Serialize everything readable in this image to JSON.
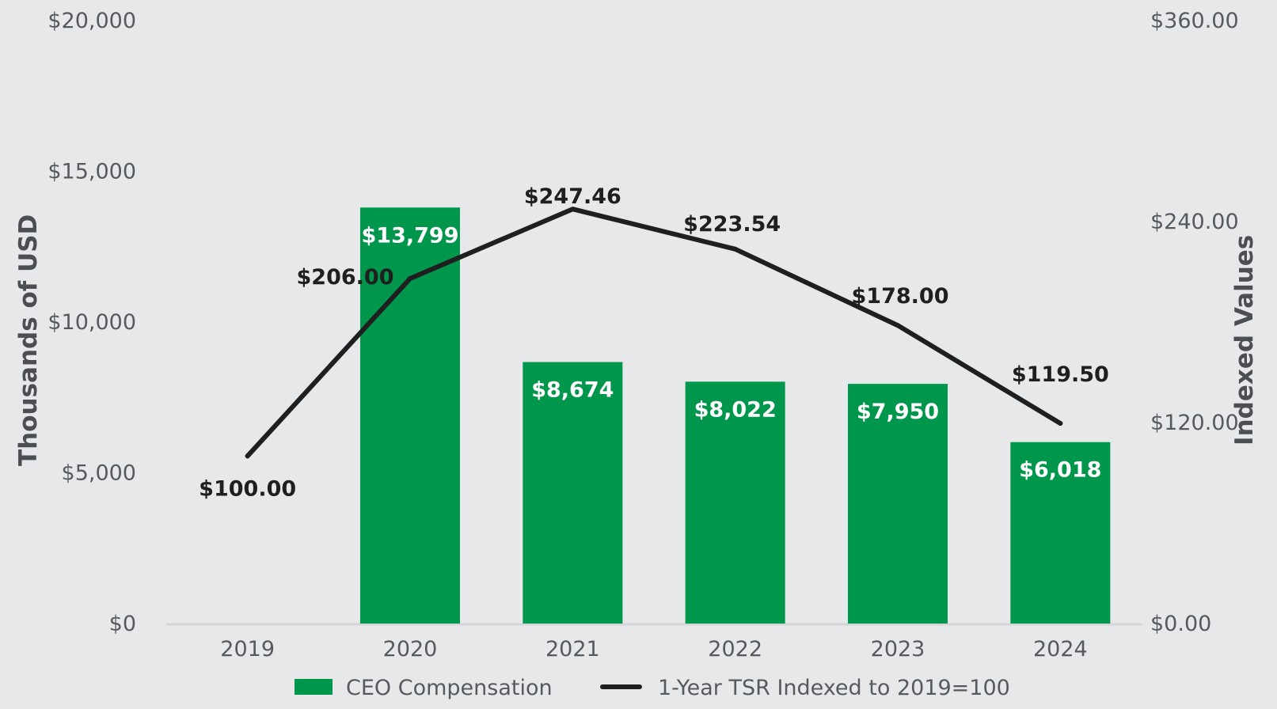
{
  "chart_data": {
    "type": "bar+line",
    "categories": [
      "2019",
      "2020",
      "2021",
      "2022",
      "2023",
      "2024"
    ],
    "series": [
      {
        "name": "CEO Compensation",
        "type": "bar",
        "axis": "left",
        "color": "#00964b",
        "values": [
          null,
          13799,
          8674,
          8022,
          7950,
          6018
        ],
        "labels": [
          "",
          "$13,799",
          "$8,674",
          "$8,022",
          "$7,950",
          "$6,018"
        ]
      },
      {
        "name": "1-Year TSR Indexed to 2019=100",
        "type": "line",
        "axis": "right",
        "color": "#1f1f1f",
        "values": [
          100.0,
          206.0,
          247.46,
          223.54,
          178.0,
          119.5
        ],
        "labels": [
          "$100.00",
          "$206.00",
          "$247.46",
          "$223.54",
          "$178.00",
          "$119.50"
        ]
      }
    ],
    "y_left": {
      "title": "Thousands of USD",
      "range": [
        0,
        20000
      ],
      "ticks": [
        0,
        5000,
        10000,
        15000,
        20000
      ],
      "tick_labels": [
        "$0",
        "$5,000",
        "$10,000",
        "$15,000",
        "$20,000"
      ]
    },
    "y_right": {
      "title": "Indexed Values",
      "range": [
        0,
        360
      ],
      "ticks": [
        0,
        120,
        240,
        360
      ],
      "tick_labels": [
        "$0.00",
        "$120.00",
        "$240.00",
        "$360.00"
      ]
    },
    "legend": {
      "position": "bottom",
      "items": [
        "CEO Compensation",
        "1-Year TSR Indexed to 2019=100"
      ]
    },
    "grid": false,
    "background": "#e7e8ea"
  }
}
